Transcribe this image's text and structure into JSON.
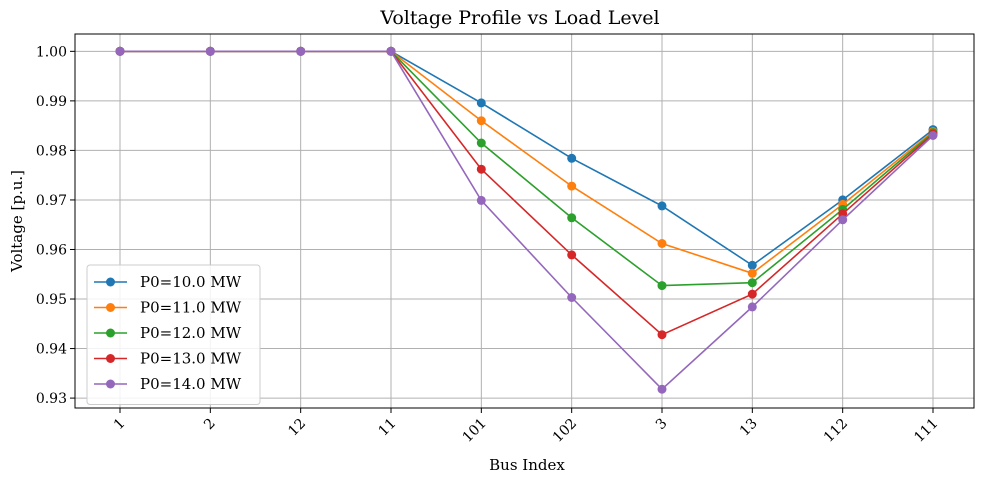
{
  "chart_data": {
    "type": "line",
    "title": "Voltage Profile vs Load Level",
    "xlabel": "Bus Index",
    "ylabel": "Voltage [p.u.]",
    "categories": [
      "1",
      "2",
      "12",
      "11",
      "101",
      "102",
      "3",
      "13",
      "112",
      "111"
    ],
    "ylim": [
      0.928,
      1.0035
    ],
    "yticks": [
      "0.93",
      "0.94",
      "0.95",
      "0.96",
      "0.97",
      "0.98",
      "0.99",
      "1.00"
    ],
    "grid": true,
    "legend_position": "lower-left",
    "series": [
      {
        "name": "P0=10.0 MW",
        "color": "#1f77b4",
        "values": [
          1.0,
          1.0,
          1.0,
          1.0,
          0.9896,
          0.9784,
          0.9688,
          0.9568,
          0.97,
          0.9842
        ]
      },
      {
        "name": "P0=11.0 MW",
        "color": "#ff7f0e",
        "values": [
          1.0,
          1.0,
          1.0,
          1.0,
          0.986,
          0.9728,
          0.9612,
          0.9552,
          0.9691,
          0.9838
        ]
      },
      {
        "name": "P0=12.0 MW",
        "color": "#2ca02c",
        "values": [
          1.0,
          1.0,
          1.0,
          1.0,
          0.9815,
          0.9664,
          0.9527,
          0.9533,
          0.9681,
          0.9836
        ]
      },
      {
        "name": "P0=13.0 MW",
        "color": "#d62728",
        "values": [
          1.0,
          1.0,
          1.0,
          1.0,
          0.9762,
          0.9589,
          0.9428,
          0.951,
          0.9672,
          0.9833
        ]
      },
      {
        "name": "P0=14.0 MW",
        "color": "#9467bd",
        "values": [
          1.0,
          1.0,
          1.0,
          1.0,
          0.9699,
          0.9503,
          0.9318,
          0.9484,
          0.966,
          0.983
        ]
      }
    ]
  }
}
